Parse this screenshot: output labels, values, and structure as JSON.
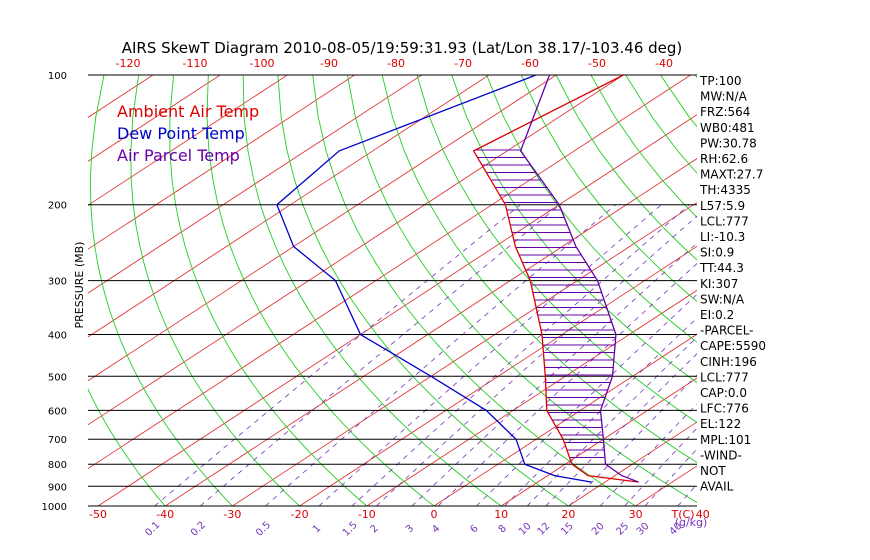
{
  "chart_data": {
    "type": "skewt",
    "title": "AIRS SkewT Diagram 2010-08-05/19:59:31.93 (Lat/Lon 38.17/-103.46 deg)",
    "ylabel": "PRESSURE (MB)",
    "xlabel": "T(C)",
    "mixing_ratio_unit": "(g/kg)",
    "legend": [
      {
        "name": "Ambient Air Temp",
        "color": "#dd0000"
      },
      {
        "name": "Dew Point Temp",
        "color": "#0000cc"
      },
      {
        "name": "Air Parcel Temp",
        "color": "#6600aa"
      }
    ],
    "pressure_levels": [
      100,
      200,
      300,
      400,
      500,
      600,
      700,
      800,
      900,
      1000
    ],
    "top_temp_ticks": [
      -120,
      -110,
      -100,
      -90,
      -80,
      -70,
      -60,
      -50,
      -40
    ],
    "bottom_temp_ticks": [
      -50,
      -40,
      -30,
      -20,
      -10,
      0,
      10,
      20,
      30,
      40
    ],
    "mixing_ratio_ticks": [
      "0.1",
      "0.2",
      "0.5",
      "1",
      "1.5",
      "2",
      "3",
      "4",
      "6",
      "8",
      "10",
      "12",
      "15",
      "20",
      "25",
      "30",
      "40"
    ],
    "ambient_profile": [
      {
        "p": 100,
        "t": -70
      },
      {
        "p": 150,
        "t": -75
      },
      {
        "p": 200,
        "t": -58
      },
      {
        "p": 250,
        "t": -47
      },
      {
        "p": 300,
        "t": -37
      },
      {
        "p": 400,
        "t": -23
      },
      {
        "p": 500,
        "t": -13
      },
      {
        "p": 600,
        "t": -5
      },
      {
        "p": 700,
        "t": 4
      },
      {
        "p": 800,
        "t": 11
      },
      {
        "p": 850,
        "t": 16
      },
      {
        "p": 880,
        "t": 25
      }
    ],
    "dewpoint_profile": [
      {
        "p": 100,
        "t": -83
      },
      {
        "p": 150,
        "t": -95
      },
      {
        "p": 200,
        "t": -92
      },
      {
        "p": 250,
        "t": -80
      },
      {
        "p": 300,
        "t": -66
      },
      {
        "p": 400,
        "t": -50
      },
      {
        "p": 500,
        "t": -30
      },
      {
        "p": 600,
        "t": -14
      },
      {
        "p": 700,
        "t": -3
      },
      {
        "p": 800,
        "t": 4
      },
      {
        "p": 850,
        "t": 11
      },
      {
        "p": 880,
        "t": 18
      }
    ],
    "parcel_profile": [
      {
        "p": 100,
        "t": -81
      },
      {
        "p": 150,
        "t": -68
      },
      {
        "p": 200,
        "t": -50
      },
      {
        "p": 250,
        "t": -38
      },
      {
        "p": 300,
        "t": -27
      },
      {
        "p": 400,
        "t": -12
      },
      {
        "p": 500,
        "t": -3
      },
      {
        "p": 600,
        "t": 3
      },
      {
        "p": 700,
        "t": 10
      },
      {
        "p": 800,
        "t": 16
      },
      {
        "p": 850,
        "t": 21
      },
      {
        "p": 880,
        "t": 25
      }
    ],
    "indices": [
      "TP:100",
      "MW:N/A",
      "FRZ:564",
      "WB0:481",
      "PW:30.78",
      "RH:62.6",
      "MAXT:27.7",
      "TH:4335",
      "L57:5.9",
      "LCL:777",
      "LI:-10.3",
      "SI:0.9",
      "TT:44.3",
      "KI:307",
      "SW:N/A",
      "EI:0.2",
      "-PARCEL-",
      "CAPE:5590",
      "CINH:196",
      "LCL:777",
      "CAP:0.0",
      "LFC:776",
      "EL:122",
      "MPL:101",
      "-WIND-",
      "NOT",
      "AVAIL"
    ]
  }
}
